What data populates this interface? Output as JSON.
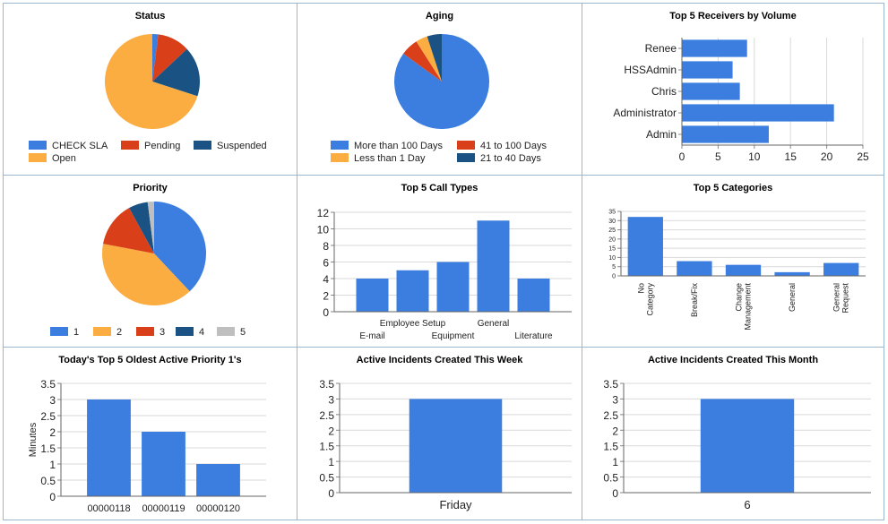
{
  "chart_data": [
    {
      "type": "pie",
      "title": "Status",
      "categories": [
        "CHECK SLA",
        "Pending",
        "Suspended",
        "Open"
      ],
      "values": [
        2,
        11,
        17,
        70
      ],
      "colors": [
        "#3b7ee0",
        "#d9401a",
        "#1a5383",
        "#fbad41"
      ],
      "legend": "bottom"
    },
    {
      "type": "pie",
      "title": "Aging",
      "categories": [
        "More than 100 Days",
        "41 to 100 Days",
        "Less than 1 Day",
        "21 to 40 Days"
      ],
      "values": [
        85,
        6,
        4,
        5
      ],
      "colors": [
        "#3b7ee0",
        "#d9401a",
        "#fbad41",
        "#1a5383"
      ],
      "legend": "bottom"
    },
    {
      "type": "bar",
      "orientation": "horizontal",
      "title": "Top 5 Receivers by Volume",
      "categories": [
        "Renee",
        "HSSAdmin",
        "Chris",
        "Administrator",
        "Admin"
      ],
      "values": [
        9,
        7,
        8,
        21,
        12
      ],
      "xlim": [
        0,
        25
      ],
      "ticks": [
        "0",
        "5",
        "10",
        "15",
        "20",
        "25"
      ],
      "grid": true
    },
    {
      "type": "pie",
      "title": "Priority",
      "categories": [
        "1",
        "2",
        "3",
        "4",
        "5"
      ],
      "values": [
        38,
        40,
        14,
        6,
        2
      ],
      "colors": [
        "#3b7ee0",
        "#fbad41",
        "#d9401a",
        "#1a5383",
        "#bfbfbf"
      ],
      "legend": "bottom"
    },
    {
      "type": "bar",
      "title": "Top 5 Call Types",
      "categories": [
        "E-mail",
        "Employee Setup",
        "Equipment",
        "General",
        "Literature"
      ],
      "values": [
        4,
        5,
        6,
        11,
        4
      ],
      "ylim": [
        0,
        12
      ],
      "ticks": [
        "0",
        "2",
        "4",
        "6",
        "8",
        "10",
        "12"
      ],
      "grid": true
    },
    {
      "type": "bar",
      "title": "Top 5 Categories",
      "categories": [
        "No Category",
        "Break/Fix",
        "Change Management",
        "General",
        "General Request"
      ],
      "values": [
        32,
        8,
        6,
        2,
        7
      ],
      "ylim": [
        0,
        35
      ],
      "ticks": [
        "0",
        "5",
        "10",
        "15",
        "20",
        "25",
        "30",
        "35"
      ],
      "grid": true
    },
    {
      "type": "bar",
      "title": "Today's Top 5 Oldest Active Priority 1's",
      "ylabel": "Minutes",
      "categories": [
        "00000118",
        "00000119",
        "00000120"
      ],
      "values": [
        3,
        2,
        1
      ],
      "ylim": [
        0,
        3.5
      ],
      "ticks": [
        "0",
        "0.5",
        "1",
        "1.5",
        "2",
        "2.5",
        "3",
        "3.5"
      ],
      "grid": true
    },
    {
      "type": "bar",
      "title": "Active Incidents Created This Week",
      "categories": [
        "Friday"
      ],
      "values": [
        3
      ],
      "ylim": [
        0,
        3.5
      ],
      "ticks": [
        "0",
        "0.5",
        "1",
        "1.5",
        "2",
        "2.5",
        "3",
        "3.5"
      ],
      "grid": true
    },
    {
      "type": "bar",
      "title": "Active Incidents Created This Month",
      "categories": [
        "6"
      ],
      "values": [
        3
      ],
      "ylim": [
        0,
        3.5
      ],
      "ticks": [
        "0",
        "0.5",
        "1",
        "1.5",
        "2",
        "2.5",
        "3",
        "3.5"
      ],
      "grid": true
    }
  ]
}
